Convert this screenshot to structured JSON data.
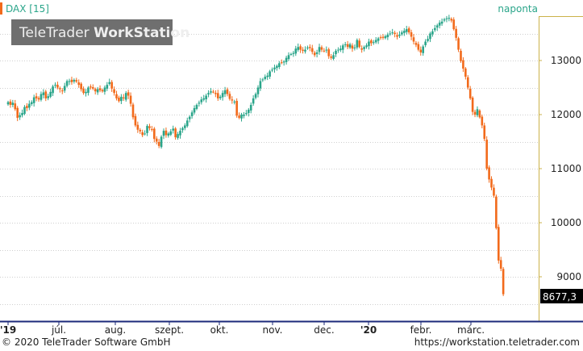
{
  "header": {
    "instrument": "DAX [15]",
    "period": "naponta"
  },
  "logo": {
    "text_light": "TeleTrader ",
    "text_bold": "WorkStation"
  },
  "last_value_label": "8677,3",
  "footer": {
    "copyright": "© 2020 TeleTrader Software GmbH",
    "url": "https://workstation.teletrader.com"
  },
  "colors": {
    "up": "#2aa58a",
    "down": "#f26a1b",
    "axis": "#1c2a7a",
    "header_text": "#2aa58a",
    "price_tag_bg": "#000000"
  },
  "chart_data": {
    "type": "candlestick",
    "title": "DAX [15]",
    "interval": "naponta",
    "ylim": [
      8250,
      13800
    ],
    "y_ticks": [
      9000,
      10000,
      11000,
      12000,
      13000
    ],
    "x_tick_labels": [
      "'19",
      "júl.",
      "aug.",
      "szept.",
      "okt.",
      "nov.",
      "dec.",
      "'20",
      "febr.",
      "márc."
    ],
    "last_value": 8677.3,
    "grid": "horizontal dotted",
    "series": [
      {
        "name": "DAX",
        "close": [
          12230,
          12180,
          12220,
          12100,
          11940,
          11990,
          12030,
          12140,
          12120,
          12200,
          12230,
          12320,
          12300,
          12280,
          12380,
          12410,
          12300,
          12340,
          12420,
          12520,
          12550,
          12500,
          12470,
          12430,
          12530,
          12620,
          12620,
          12600,
          12640,
          12610,
          12550,
          12470,
          12400,
          12420,
          12500,
          12500,
          12480,
          12430,
          12470,
          12450,
          12430,
          12500,
          12550,
          12600,
          12480,
          12400,
          12300,
          12250,
          12330,
          12300,
          12400,
          12350,
          12200,
          11950,
          11800,
          11720,
          11690,
          11620,
          11650,
          11790,
          11750,
          11720,
          11550,
          11500,
          11420,
          11590,
          11700,
          11620,
          11650,
          11690,
          11740,
          11580,
          11640,
          11700,
          11750,
          11800,
          11890,
          11960,
          12040,
          12120,
          12180,
          12220,
          12280,
          12300,
          12350,
          12400,
          12430,
          12420,
          12380,
          12300,
          12330,
          12400,
          12450,
          12380,
          12290,
          12260,
          12240,
          11980,
          11940,
          12000,
          12000,
          12030,
          12090,
          12180,
          12300,
          12380,
          12500,
          12620,
          12650,
          12700,
          12720,
          12800,
          12830,
          12870,
          12900,
          12950,
          12960,
          12980,
          13050,
          13100,
          13120,
          13140,
          13220,
          13250,
          13200,
          13180,
          13200,
          13240,
          13230,
          13160,
          13100,
          13150,
          13250,
          13200,
          13180,
          13200,
          13080,
          13050,
          13100,
          13180,
          13200,
          13220,
          13280,
          13300,
          13250,
          13300,
          13220,
          13240,
          13380,
          13250,
          13200,
          13250,
          13280,
          13350,
          13320,
          13340,
          13380,
          13410,
          13430,
          13420,
          13450,
          13480,
          13500,
          13520,
          13490,
          13440,
          13480,
          13520,
          13550,
          13580,
          13520,
          13440,
          13350,
          13290,
          13200,
          13150,
          13260,
          13350,
          13400,
          13500,
          13540,
          13600,
          13650,
          13700,
          13720,
          13760,
          13780,
          13790,
          13740,
          13580,
          13420,
          13200,
          12990,
          12850,
          12700,
          12500,
          12300,
          12050,
          12000,
          12100,
          11950,
          11800,
          11550,
          11000,
          10800,
          10650,
          10500,
          9900,
          9300,
          9150,
          8677
        ]
      }
    ]
  }
}
